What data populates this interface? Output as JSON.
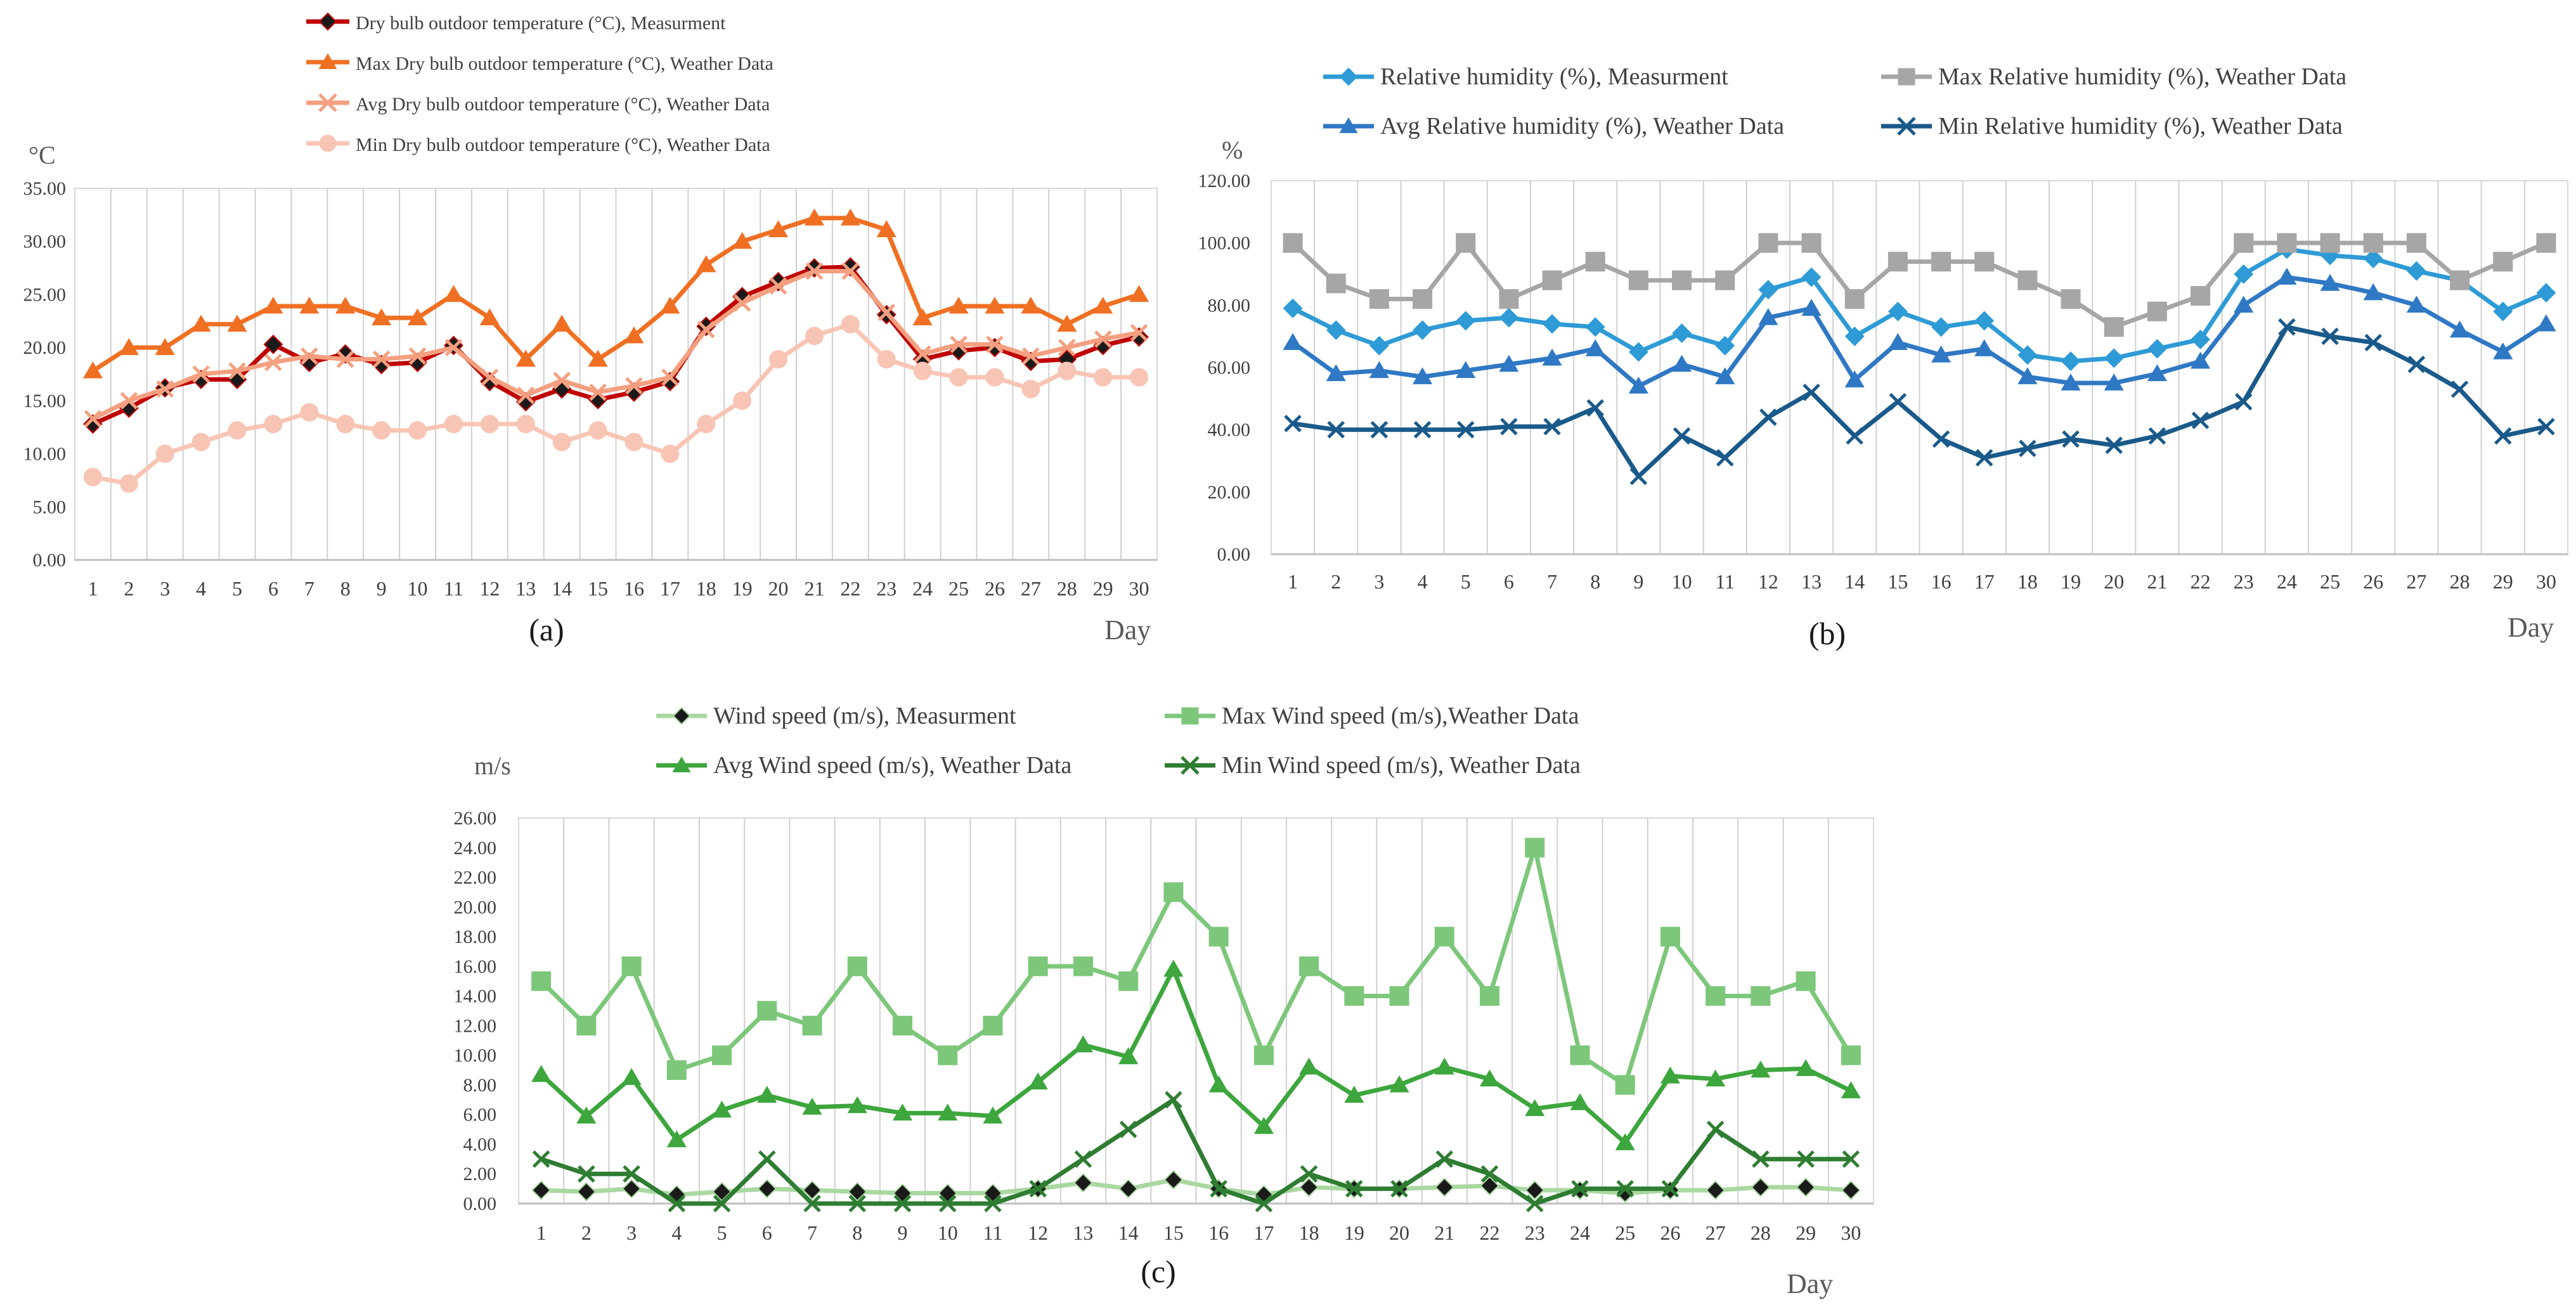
{
  "chart_data": [
    {
      "type": "line",
      "panel_label": "(a)",
      "unit_label": "°C",
      "xlabel": "Day",
      "ylim": [
        0,
        35
      ],
      "ytick_step": 5,
      "ytick_labels": [
        "0.00",
        "5.00",
        "10.00",
        "15.00",
        "20.00",
        "25.00",
        "30.00",
        "35.00"
      ],
      "categories": [
        "1",
        "2",
        "3",
        "4",
        "5",
        "6",
        "7",
        "8",
        "9",
        "10",
        "11",
        "12",
        "13",
        "14",
        "15",
        "16",
        "17",
        "18",
        "19",
        "20",
        "21",
        "22",
        "23",
        "24",
        "25",
        "26",
        "27",
        "28",
        "29",
        "30"
      ],
      "grid": "vertical",
      "legend_position": "top",
      "series": [
        {
          "name": "Dry bulb outdoor temperature (°C), Measurment",
          "color": "#C00000",
          "marker": "diamond",
          "marker_fill": "#1a1a1a",
          "values": [
            12.8,
            14.3,
            16.2,
            17.0,
            17.0,
            20.3,
            18.6,
            19.4,
            18.4,
            18.6,
            20.2,
            16.8,
            14.9,
            16.1,
            15.1,
            15.8,
            16.8,
            22.0,
            24.8,
            26.2,
            27.5,
            27.6,
            23.1,
            18.9,
            19.7,
            20.0,
            18.7,
            18.9,
            20.2,
            21.0
          ]
        },
        {
          "name": "Max Dry bulb outdoor temperature (°C), Weather Data",
          "color": "#F07023",
          "marker": "triangle",
          "marker_fill": "#F07023",
          "values": [
            17.8,
            20.0,
            20.0,
            22.2,
            22.2,
            23.9,
            23.9,
            23.9,
            22.8,
            22.8,
            25.0,
            22.8,
            18.9,
            22.2,
            18.9,
            21.1,
            23.9,
            27.8,
            30.0,
            31.1,
            32.2,
            32.2,
            31.1,
            22.8,
            23.9,
            23.9,
            23.9,
            22.2,
            23.9,
            25.0
          ]
        },
        {
          "name": "Avg Dry bulb outdoor temperature (°C), Weather Data",
          "color": "#F4A080",
          "marker": "x",
          "marker_fill": "#F4A080",
          "values": [
            13.3,
            15.0,
            16.1,
            17.5,
            17.8,
            18.6,
            19.2,
            18.9,
            18.9,
            19.2,
            20.0,
            17.2,
            15.5,
            16.9,
            15.8,
            16.4,
            17.2,
            21.7,
            24.2,
            25.8,
            27.2,
            27.2,
            23.3,
            19.4,
            20.3,
            20.3,
            19.2,
            20.0,
            20.8,
            21.4
          ]
        },
        {
          "name": "Min Dry bulb outdoor temperature (°C), Weather Data",
          "color": "#F8C5B5",
          "marker": "circle",
          "marker_fill": "#F8C5B5",
          "values": [
            7.8,
            7.2,
            10.0,
            11.1,
            12.2,
            12.8,
            13.9,
            12.8,
            12.2,
            12.2,
            12.8,
            12.8,
            12.8,
            11.1,
            12.2,
            11.1,
            10.0,
            12.8,
            15.0,
            18.9,
            21.1,
            22.2,
            18.9,
            17.8,
            17.2,
            17.2,
            16.1,
            17.8,
            17.2,
            17.2
          ]
        }
      ]
    },
    {
      "type": "line",
      "panel_label": "(b)",
      "unit_label": "%",
      "xlabel": "Day",
      "ylim": [
        0,
        120
      ],
      "ytick_step": 20,
      "ytick_labels": [
        "0.00",
        "20.00",
        "40.00",
        "60.00",
        "80.00",
        "100.00",
        "120.00"
      ],
      "categories": [
        "1",
        "2",
        "3",
        "4",
        "5",
        "6",
        "7",
        "8",
        "9",
        "10",
        "11",
        "12",
        "13",
        "14",
        "15",
        "16",
        "17",
        "18",
        "19",
        "20",
        "21",
        "22",
        "23",
        "24",
        "25",
        "26",
        "27",
        "28",
        "29",
        "30"
      ],
      "grid": "vertical",
      "legend_position": "top",
      "series": [
        {
          "name": "Relative humidity (%), Measurment",
          "color": "#2E9BD6",
          "marker": "diamond",
          "marker_fill": "#2E9BD6",
          "values": [
            79,
            72,
            67,
            72,
            75,
            76,
            74,
            73,
            65,
            71,
            67,
            85,
            89,
            70,
            78,
            73,
            75,
            64,
            62,
            63,
            66,
            69,
            90,
            98,
            96,
            95,
            91,
            88,
            78,
            84
          ]
        },
        {
          "name": "Max Relative humidity (%), Weather Data",
          "color": "#A6A6A6",
          "marker": "square",
          "marker_fill": "#A6A6A6",
          "values": [
            100,
            87,
            82,
            82,
            100,
            82,
            88,
            94,
            88,
            88,
            88,
            100,
            100,
            82,
            94,
            94,
            94,
            88,
            82,
            73,
            78,
            83,
            100,
            100,
            100,
            100,
            100,
            88,
            94,
            100
          ]
        },
        {
          "name": "Avg Relative humidity (%), Weather Data",
          "color": "#2F78C4",
          "marker": "triangle",
          "marker_fill": "#2F78C4",
          "values": [
            68,
            58,
            59,
            57,
            59,
            61,
            63,
            66,
            54,
            61,
            57,
            76,
            79,
            56,
            68,
            64,
            66,
            57,
            55,
            55,
            58,
            62,
            80,
            89,
            87,
            84,
            80,
            72,
            65,
            74
          ]
        },
        {
          "name": "Min Relative humidity (%), Weather Data",
          "color": "#1A5A8A",
          "marker": "x",
          "marker_fill": "#1A5A8A",
          "values": [
            42,
            40,
            40,
            40,
            40,
            41,
            41,
            47,
            25,
            38,
            31,
            44,
            52,
            38,
            49,
            37,
            31,
            34,
            37,
            35,
            38,
            43,
            49,
            73,
            70,
            68,
            61,
            53,
            38,
            41
          ]
        }
      ]
    },
    {
      "type": "line",
      "panel_label": "(c)",
      "unit_label": "m/s",
      "xlabel": "Day",
      "ylim": [
        0,
        26
      ],
      "ytick_step": 2,
      "ytick_labels": [
        "0.00",
        "2.00",
        "4.00",
        "6.00",
        "8.00",
        "10.00",
        "12.00",
        "14.00",
        "16.00",
        "18.00",
        "20.00",
        "22.00",
        "24.00",
        "26.00"
      ],
      "categories": [
        "1",
        "2",
        "3",
        "4",
        "5",
        "6",
        "7",
        "8",
        "9",
        "10",
        "11",
        "12",
        "13",
        "14",
        "15",
        "16",
        "17",
        "18",
        "19",
        "20",
        "21",
        "22",
        "23",
        "24",
        "25",
        "26",
        "27",
        "28",
        "29",
        "30"
      ],
      "grid": "vertical",
      "legend_position": "top",
      "series": [
        {
          "name": "Wind speed (m/s), Measurment",
          "color": "#A9D8A0",
          "marker": "diamond",
          "marker_fill": "#1a1a1a",
          "values": [
            0.9,
            0.8,
            1.0,
            0.6,
            0.8,
            1.0,
            0.9,
            0.8,
            0.7,
            0.7,
            0.7,
            1.0,
            1.4,
            1.0,
            1.6,
            1.0,
            0.6,
            1.1,
            1.0,
            1.0,
            1.1,
            1.2,
            0.9,
            0.9,
            0.7,
            0.9,
            0.9,
            1.1,
            1.1,
            0.9
          ]
        },
        {
          "name": "Max Wind speed (m/s),Weather Data",
          "color": "#7DC77A",
          "marker": "square",
          "marker_fill": "#7DC77A",
          "values": [
            15,
            12,
            16,
            9,
            10,
            13,
            12,
            16,
            12,
            10,
            12,
            16,
            16,
            15,
            21,
            18,
            10,
            16,
            14,
            14,
            18,
            14,
            24,
            10,
            8,
            18,
            14,
            14,
            15,
            10
          ]
        },
        {
          "name": "Avg Wind speed (m/s), Weather Data",
          "color": "#3DA63D",
          "marker": "triangle",
          "marker_fill": "#3DA63D",
          "values": [
            8.7,
            5.9,
            8.5,
            4.3,
            6.3,
            7.3,
            6.5,
            6.6,
            6.1,
            6.1,
            5.9,
            8.2,
            10.7,
            9.9,
            15.8,
            8.0,
            5.2,
            9.2,
            7.3,
            8.0,
            9.2,
            8.4,
            6.4,
            6.8,
            4.1,
            8.6,
            8.4,
            9.0,
            9.1,
            7.6
          ]
        },
        {
          "name": "Min Wind speed (m/s), Weather Data",
          "color": "#2E7D32",
          "marker": "x",
          "marker_fill": "#2E7D32",
          "values": [
            3,
            2,
            2,
            0,
            0,
            3,
            0,
            0,
            0,
            0,
            0,
            1,
            3,
            5,
            7,
            1,
            0,
            2,
            1,
            1,
            3,
            2,
            0,
            1,
            1,
            1,
            5,
            3,
            3,
            3
          ]
        }
      ]
    }
  ]
}
